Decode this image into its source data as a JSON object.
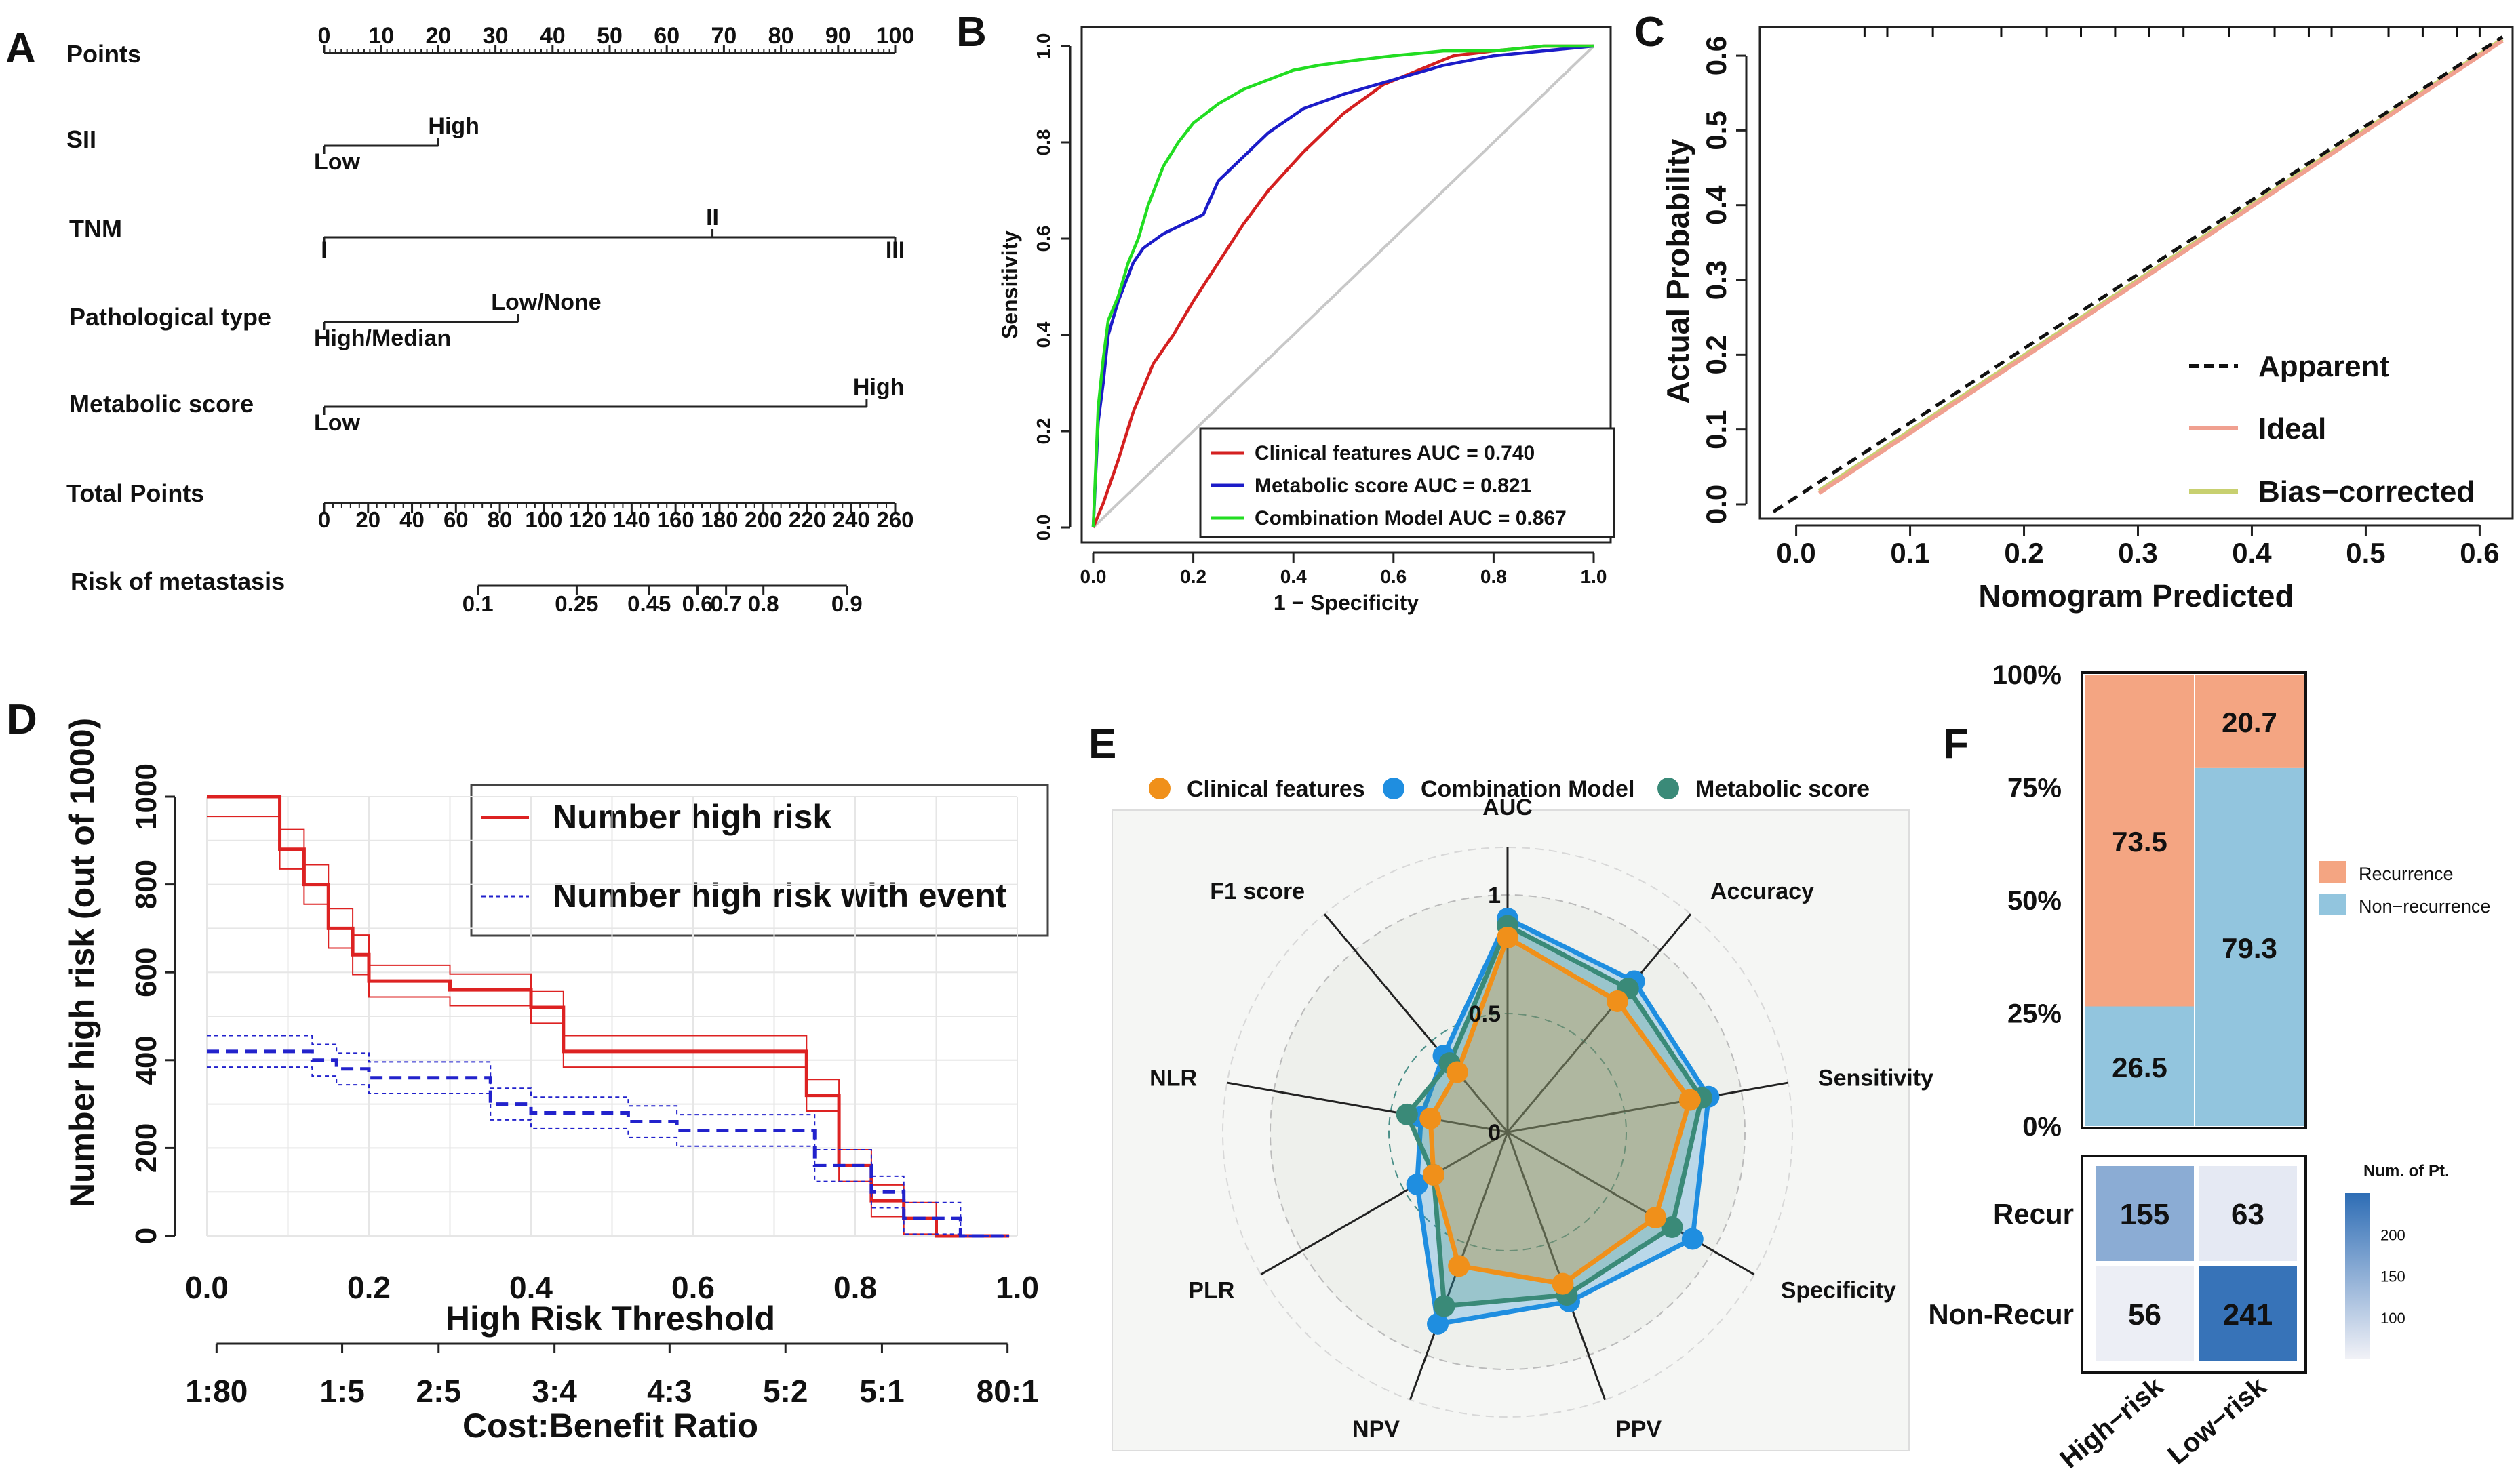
{
  "panel_letters": [
    "A",
    "B",
    "C",
    "D",
    "E",
    "F"
  ],
  "chart_data": [
    {
      "id": "A",
      "type": "table",
      "title": "Nomogram",
      "points_label": "Points",
      "points_ticks": [
        0,
        10,
        20,
        30,
        40,
        50,
        60,
        70,
        80,
        90,
        100
      ],
      "variables": [
        {
          "name": "SII",
          "levels": [
            {
              "label": "Low",
              "points": 0
            },
            {
              "label": "High",
              "points": 20
            }
          ]
        },
        {
          "name": "TNM",
          "levels": [
            {
              "label": "I",
              "points": 0
            },
            {
              "label": "II",
              "points": 68
            },
            {
              "label": "III",
              "points": 100
            }
          ]
        },
        {
          "name": "Pathological type",
          "levels": [
            {
              "label": "High/Median",
              "points": 0
            },
            {
              "label": "Low/None",
              "points": 34
            }
          ]
        },
        {
          "name": "Metabolic score",
          "levels": [
            {
              "label": "Low",
              "points": 0
            },
            {
              "label": "High",
              "points": 95
            }
          ]
        }
      ],
      "total_points_label": "Total Points",
      "total_points_ticks": [
        0,
        20,
        40,
        60,
        80,
        100,
        120,
        140,
        160,
        180,
        200,
        220,
        240,
        260
      ],
      "risk_label": "Risk of metastasis",
      "risk_ticks": [
        {
          "label": "0.1",
          "total": 70
        },
        {
          "label": "0.25",
          "total": 115
        },
        {
          "label": "0.45",
          "total": 148
        },
        {
          "label": "0.6",
          "total": 170
        },
        {
          "label": "0.7",
          "total": 183
        },
        {
          "label": "0.8",
          "total": 200
        },
        {
          "label": "0.9",
          "total": 238
        }
      ]
    },
    {
      "id": "B",
      "type": "line",
      "xlabel": "1 − Specificity",
      "ylabel": "Sensitivity",
      "xlim": [
        0,
        1
      ],
      "ylim": [
        0,
        1
      ],
      "xticks": [
        "0.0",
        "0.2",
        "0.4",
        "0.6",
        "0.8",
        "1.0"
      ],
      "yticks": [
        "0.0",
        "0.2",
        "0.4",
        "0.6",
        "0.8",
        "1.0"
      ],
      "series": [
        {
          "name": "Clinical features AUC = 0.740",
          "color": "#d42020",
          "x": [
            0,
            0.02,
            0.05,
            0.08,
            0.12,
            0.16,
            0.2,
            0.25,
            0.3,
            0.35,
            0.42,
            0.5,
            0.58,
            0.65,
            0.72,
            0.8,
            0.9,
            1
          ],
          "y": [
            0,
            0.05,
            0.14,
            0.24,
            0.34,
            0.4,
            0.47,
            0.55,
            0.63,
            0.7,
            0.78,
            0.86,
            0.92,
            0.95,
            0.98,
            0.99,
            1,
            1
          ]
        },
        {
          "name": "Metabolic score AUC = 0.821",
          "color": "#1c1cc8",
          "x": [
            0,
            0.01,
            0.02,
            0.03,
            0.05,
            0.08,
            0.1,
            0.14,
            0.18,
            0.22,
            0.25,
            0.3,
            0.35,
            0.42,
            0.5,
            0.6,
            0.7,
            0.8,
            0.9,
            1
          ],
          "y": [
            0,
            0.22,
            0.3,
            0.4,
            0.47,
            0.55,
            0.58,
            0.61,
            0.63,
            0.65,
            0.72,
            0.77,
            0.82,
            0.87,
            0.9,
            0.93,
            0.96,
            0.98,
            0.99,
            1
          ]
        },
        {
          "name": "Combination Model AUC = 0.867",
          "color": "#22dd22",
          "x": [
            0,
            0.01,
            0.02,
            0.03,
            0.05,
            0.07,
            0.09,
            0.11,
            0.14,
            0.17,
            0.2,
            0.25,
            0.3,
            0.35,
            0.4,
            0.45,
            0.52,
            0.6,
            0.7,
            0.8,
            0.9,
            1
          ],
          "y": [
            0,
            0.25,
            0.35,
            0.43,
            0.48,
            0.55,
            0.6,
            0.67,
            0.75,
            0.8,
            0.84,
            0.88,
            0.91,
            0.93,
            0.95,
            0.96,
            0.97,
            0.98,
            0.99,
            0.99,
            1,
            1
          ]
        }
      ],
      "reference_line": {
        "x": [
          0,
          1
        ],
        "y": [
          0,
          1
        ],
        "color": "#c8c8c8"
      },
      "legend_position": "bottom-right"
    },
    {
      "id": "C",
      "type": "line",
      "xlabel": "Nomogram Predicted",
      "ylabel": "Actual Probability",
      "xlim": [
        -0.02,
        0.62
      ],
      "ylim": [
        -0.01,
        0.62
      ],
      "xticks": [
        "0.0",
        "0.1",
        "0.2",
        "0.3",
        "0.4",
        "0.5",
        "0.6"
      ],
      "yticks": [
        "0.0",
        "0.1",
        "0.2",
        "0.3",
        "0.4",
        "0.5",
        "0.6"
      ],
      "series": [
        {
          "name": "Apparent",
          "color": "#111111",
          "style": "dashed",
          "x": [
            -0.02,
            0.62
          ],
          "y": [
            -0.01,
            0.625
          ]
        },
        {
          "name": "Ideal",
          "color": "#f0a090",
          "style": "solid",
          "x": [
            0.02,
            0.62
          ],
          "y": [
            0.015,
            0.62
          ]
        },
        {
          "name": "Bias−corrected",
          "color": "#c8d070",
          "style": "solid",
          "x": [
            0.02,
            0.62
          ],
          "y": [
            0.018,
            0.622
          ]
        }
      ],
      "rug_x": [
        0.06,
        0.08,
        0.12,
        0.18,
        0.22,
        0.25,
        0.28,
        0.31,
        0.34,
        0.38,
        0.42,
        0.45,
        0.47,
        0.52,
        0.55,
        0.58,
        0.6
      ],
      "legend_position": "bottom-right"
    },
    {
      "id": "D",
      "type": "line",
      "xlabel": "High Risk Threshold",
      "ylabel": "Number high risk (out of 1000)",
      "xlim": [
        0,
        1
      ],
      "ylim": [
        0,
        1000
      ],
      "xticks": [
        "0.0",
        "0.2",
        "0.4",
        "0.6",
        "0.8",
        "1.0"
      ],
      "yticks": [
        "0",
        "200",
        "400",
        "600",
        "800",
        "1000"
      ],
      "cost_benefit_label": "Cost:Benefit Ratio",
      "cost_benefit_ticks": [
        {
          "label": "1:80",
          "t": 0.012
        },
        {
          "label": "1:5",
          "t": 0.167
        },
        {
          "label": "2:5",
          "t": 0.286
        },
        {
          "label": "3:4",
          "t": 0.429
        },
        {
          "label": "4:3",
          "t": 0.571
        },
        {
          "label": "5:2",
          "t": 0.714
        },
        {
          "label": "5:1",
          "t": 0.833
        },
        {
          "label": "80:1",
          "t": 0.988
        }
      ],
      "series": [
        {
          "name": "Number high risk",
          "color": "#dd2222",
          "style": "solid",
          "x": [
            0,
            0.09,
            0.09,
            0.12,
            0.12,
            0.15,
            0.15,
            0.18,
            0.18,
            0.2,
            0.2,
            0.3,
            0.3,
            0.4,
            0.4,
            0.44,
            0.44,
            0.74,
            0.74,
            0.78,
            0.78,
            0.82,
            0.82,
            0.86,
            0.86,
            0.9,
            0.9,
            0.99
          ],
          "y": [
            1000,
            1000,
            880,
            880,
            800,
            800,
            700,
            700,
            640,
            640,
            580,
            580,
            560,
            560,
            520,
            520,
            420,
            420,
            320,
            320,
            160,
            160,
            80,
            80,
            40,
            40,
            0,
            0
          ]
        },
        {
          "name": "Number high risk with event",
          "color": "#2222cc",
          "style": "dashed",
          "x": [
            0,
            0.13,
            0.13,
            0.16,
            0.16,
            0.2,
            0.2,
            0.35,
            0.35,
            0.4,
            0.4,
            0.52,
            0.52,
            0.58,
            0.58,
            0.75,
            0.75,
            0.82,
            0.82,
            0.86,
            0.86,
            0.93,
            0.93,
            0.99
          ],
          "y": [
            420,
            420,
            400,
            400,
            380,
            380,
            360,
            360,
            300,
            300,
            280,
            280,
            260,
            260,
            240,
            240,
            160,
            160,
            100,
            100,
            40,
            40,
            0,
            0
          ]
        }
      ],
      "legend_position": "top-right"
    },
    {
      "id": "E",
      "type": "radar",
      "axes": [
        "AUC",
        "Accuracy",
        "Sensitivity",
        "Specificity",
        "PPV",
        "NPV",
        "PLR",
        "NLR",
        "F1 score"
      ],
      "rings": [
        "0",
        "0.5",
        "1"
      ],
      "series": [
        {
          "name": "Clinical features",
          "color": "#f0901a",
          "values": [
            0.82,
            0.72,
            0.78,
            0.72,
            0.68,
            0.6,
            0.36,
            0.33,
            0.33
          ]
        },
        {
          "name": "Combination Model",
          "color": "#1f8ee0",
          "values": [
            0.9,
            0.83,
            0.86,
            0.9,
            0.76,
            0.86,
            0.44,
            0.37,
            0.42
          ]
        },
        {
          "name": "Metabolic score",
          "color": "#3a8a78",
          "values": [
            0.87,
            0.79,
            0.83,
            0.8,
            0.73,
            0.78,
            0.36,
            0.43,
            0.38
          ]
        }
      ],
      "legend_position": "top"
    },
    {
      "id": "F",
      "type": "bar",
      "subtype": "stacked-percent",
      "categories": [
        "High−risk",
        "Low−risk"
      ],
      "yticks": [
        "0%",
        "25%",
        "50%",
        "75%",
        "100%"
      ],
      "series": [
        {
          "name": "Recurrence",
          "color": "#f4a582",
          "values": [
            73.5,
            20.7
          ]
        },
        {
          "name": "Non−recurrence",
          "color": "#92c5de",
          "values": [
            26.5,
            79.3
          ]
        }
      ],
      "value_labels": {
        "Recurrence": [
          "73.5",
          "20.7"
        ],
        "Non−recurrence": [
          "26.5",
          "79.3"
        ]
      },
      "legend_position": "right"
    },
    {
      "id": "F-heatmap",
      "type": "heatmap",
      "rows": [
        "Recur",
        "Non-Recur"
      ],
      "columns": [
        "High−risk",
        "Low−risk"
      ],
      "values": [
        [
          155,
          63
        ],
        [
          56,
          241
        ]
      ],
      "colorbar_title": "Num. of Pt.",
      "colorbar_ticks": [
        "100",
        "150",
        "200"
      ],
      "color_low": "#f2f2f7",
      "color_high": "#2e6db5"
    }
  ]
}
